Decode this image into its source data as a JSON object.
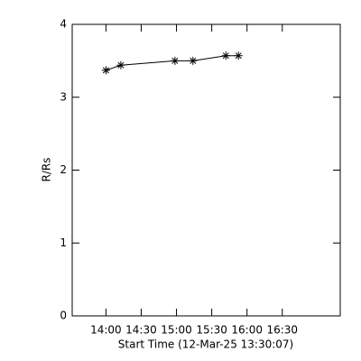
{
  "chart_data": {
    "type": "line",
    "y_label": "R/Rs",
    "x_label": "Start Time (12-Mar-25 13:30:07)",
    "x": [
      840,
      852.7,
      898.7,
      914,
      942,
      952.7
    ],
    "values": [
      3.37,
      3.44,
      3.5,
      3.5,
      3.57,
      3.57
    ],
    "color": "#000000",
    "marker": "asterisk",
    "xlim": [
      811.3,
      1039.3
    ],
    "xticks": [
      {
        "value": 840,
        "label": "14:00"
      },
      {
        "value": 870,
        "label": "14:30"
      },
      {
        "value": 900,
        "label": "15:00"
      },
      {
        "value": 930,
        "label": "15:30"
      },
      {
        "value": 960,
        "label": "16:00"
      },
      {
        "value": 990,
        "label": "16:30"
      }
    ],
    "ylim": [
      0,
      4
    ],
    "yticks": [
      0,
      1,
      2,
      3,
      4
    ]
  }
}
